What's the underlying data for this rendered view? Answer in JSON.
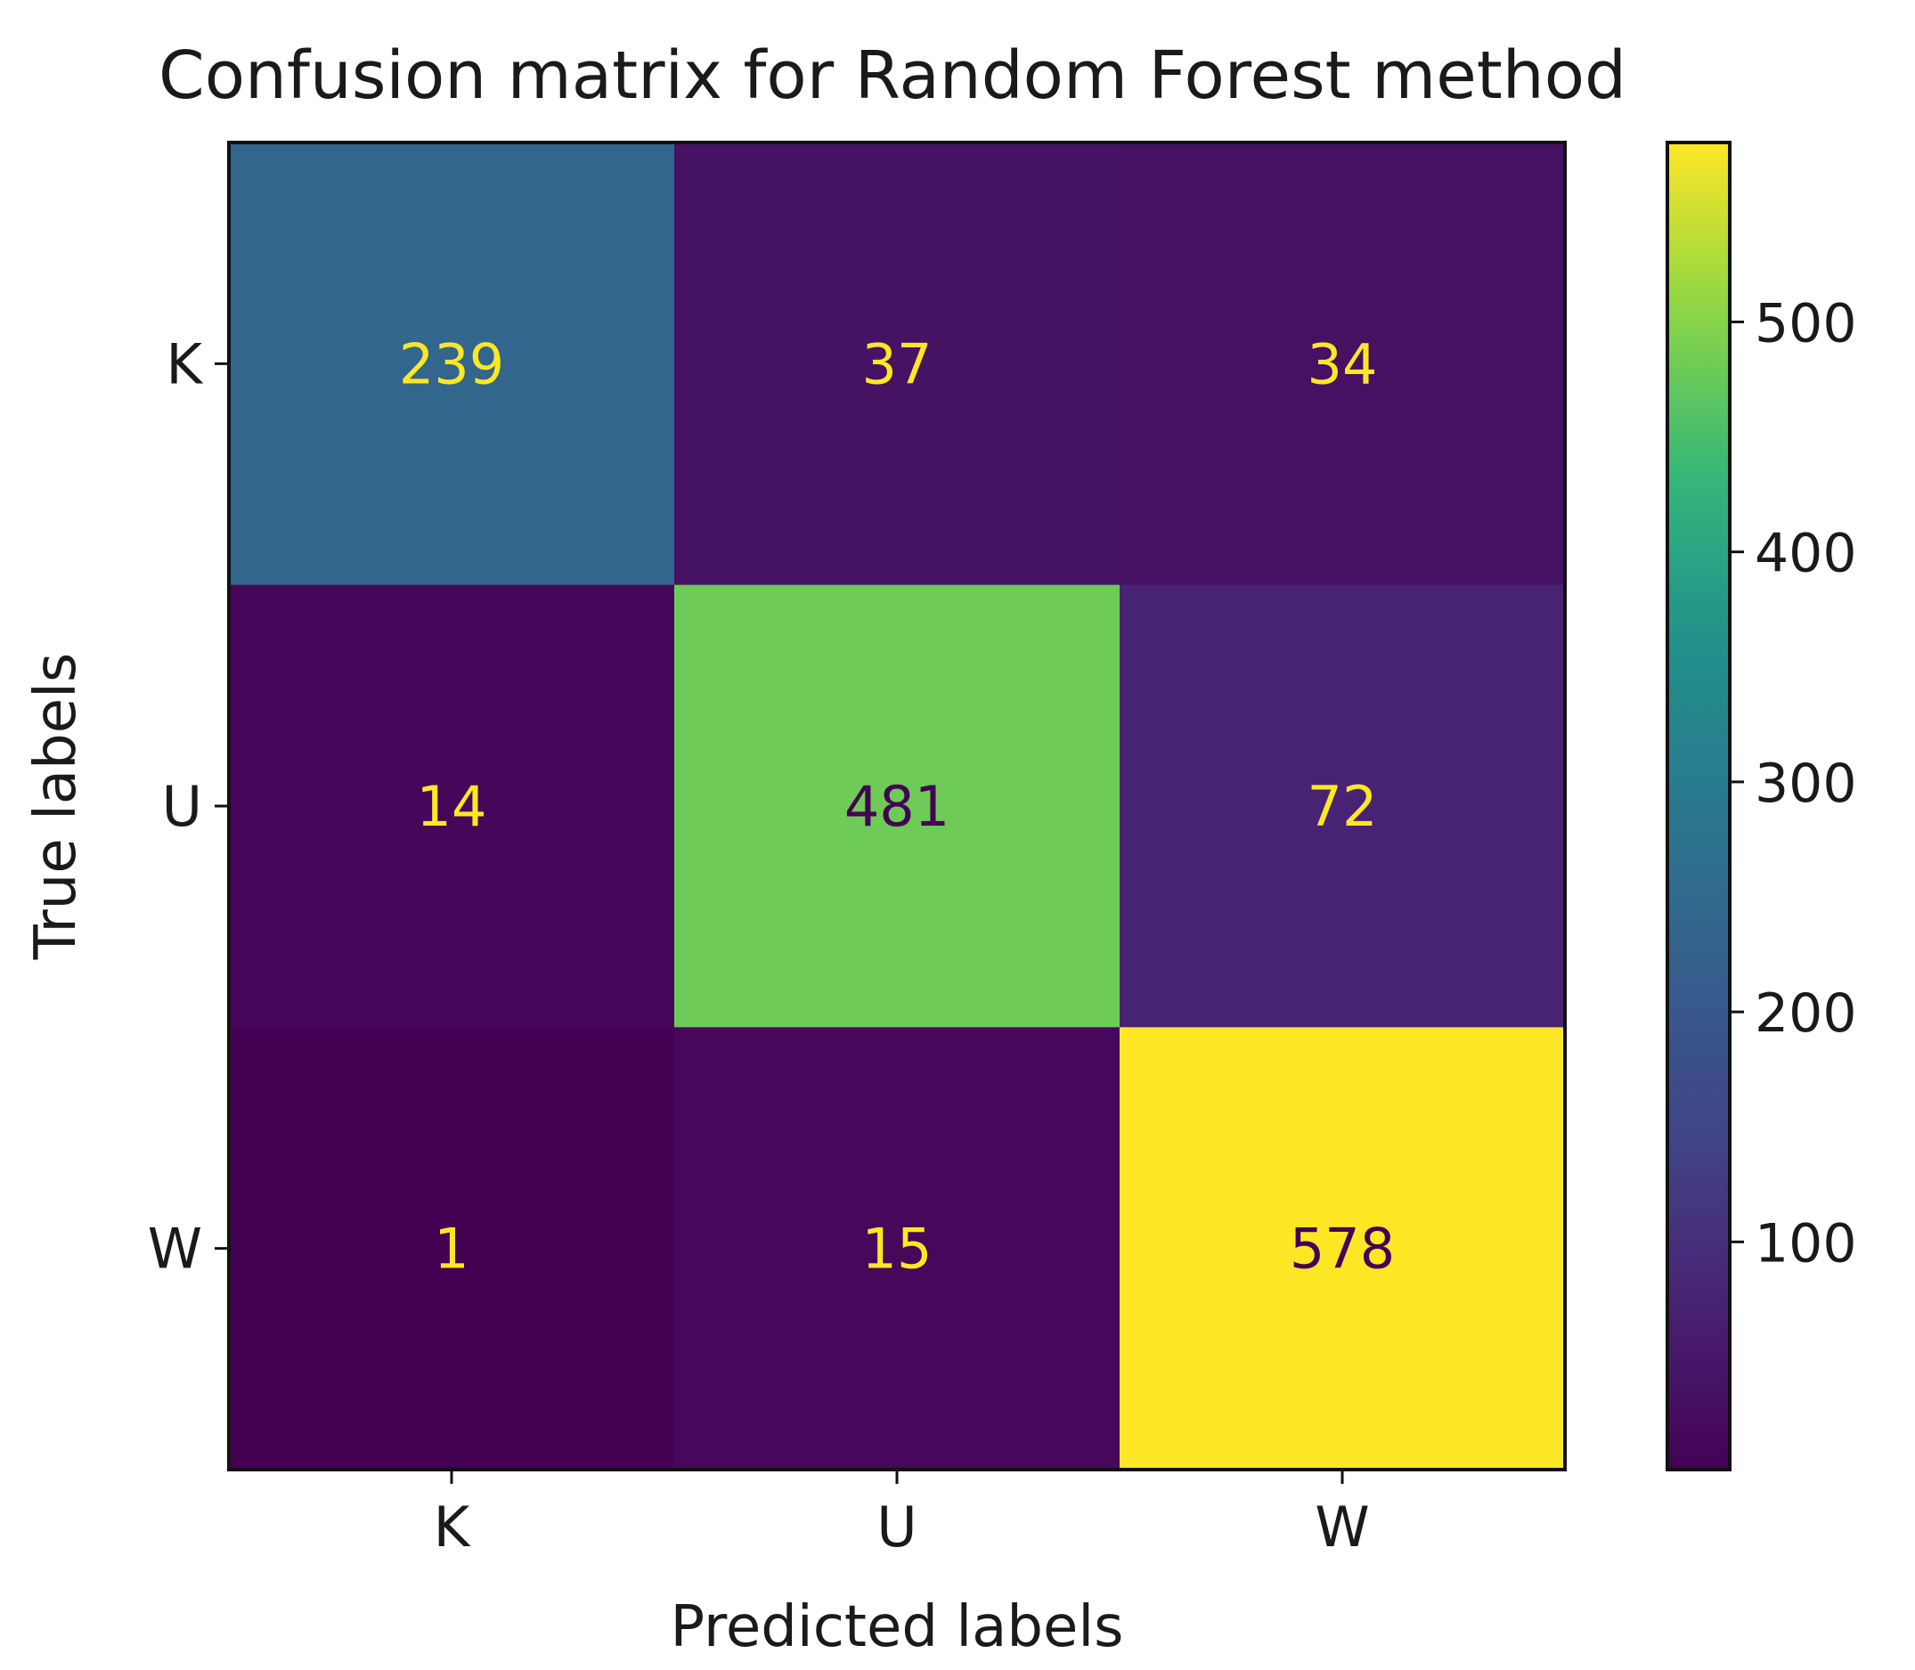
{
  "chart_data": {
    "type": "heatmap",
    "title": "Confusion matrix for Random Forest method",
    "xlabel": "Predicted labels",
    "ylabel": "True labels",
    "x_categories": [
      "K",
      "U",
      "W"
    ],
    "y_categories": [
      "K",
      "U",
      "W"
    ],
    "values": [
      [
        239,
        37,
        34
      ],
      [
        14,
        481,
        72
      ],
      [
        1,
        15,
        578
      ]
    ],
    "colormap": "viridis",
    "color_range": [
      1,
      578
    ],
    "colorbar_ticks": [
      "100",
      "200",
      "300",
      "400",
      "500"
    ],
    "colorbar_tick_values": [
      100,
      200,
      300,
      400,
      500
    ],
    "text_colors": {
      "on_dark": "#fde725",
      "on_light": "#440154"
    }
  }
}
